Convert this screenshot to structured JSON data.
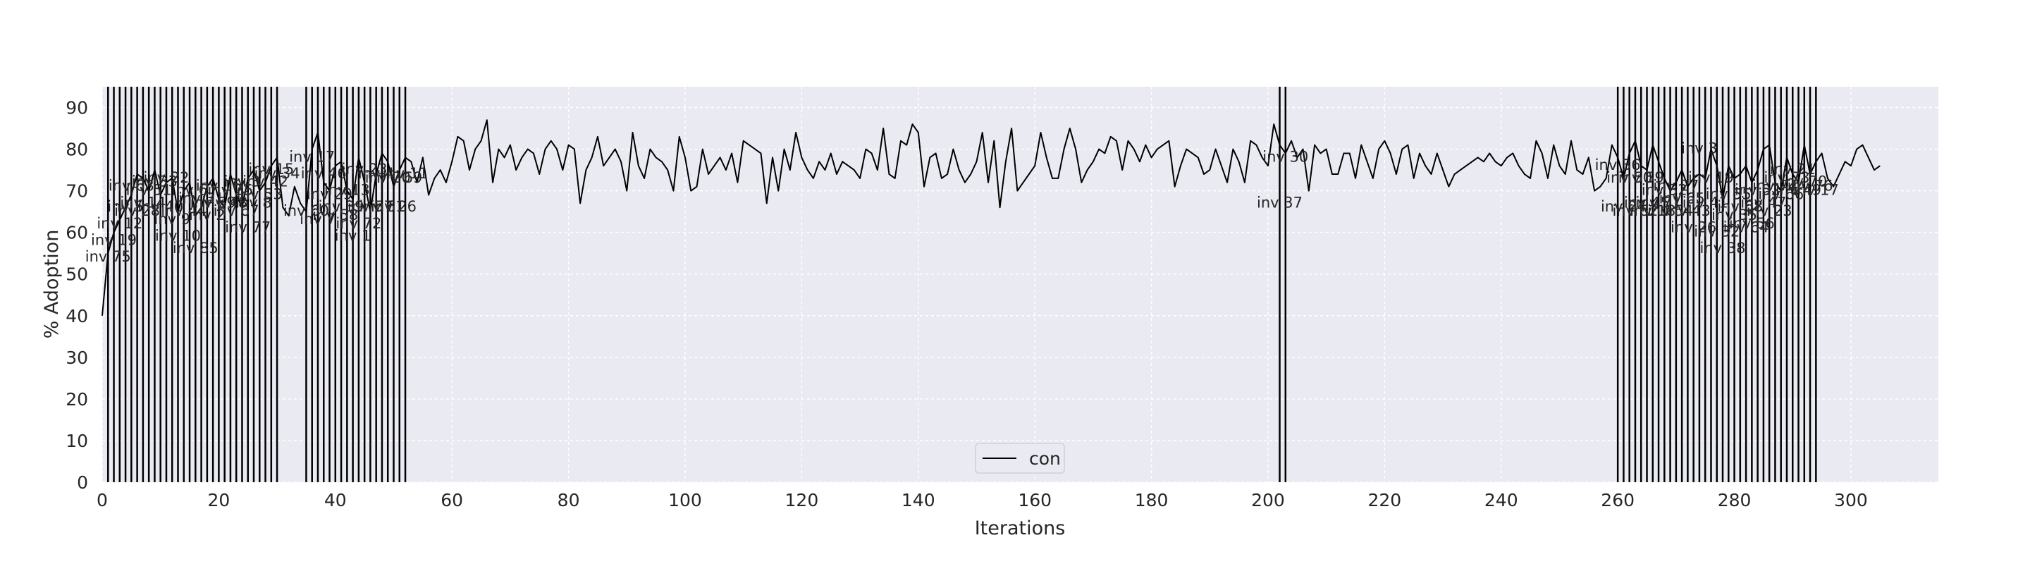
{
  "chart_data": {
    "type": "line",
    "title": "",
    "xlabel": "Iterations",
    "ylabel": "% Adoption",
    "xlim": [
      0,
      315
    ],
    "ylim": [
      0,
      95
    ],
    "xticks": [
      0,
      20,
      40,
      60,
      80,
      100,
      120,
      140,
      160,
      180,
      200,
      220,
      240,
      260,
      280,
      300
    ],
    "yticks": [
      0,
      10,
      20,
      30,
      40,
      50,
      60,
      70,
      80,
      90
    ],
    "grid": true,
    "legend_position": "bottom-center",
    "background_color": "#eaeaf2",
    "line_color": "#000000",
    "series": [
      {
        "name": "con",
        "x_start": 0,
        "x_step": 1,
        "values": [
          40,
          55,
          60,
          63,
          66,
          69,
          74,
          73,
          70,
          75,
          69,
          72,
          73,
          65,
          70,
          72,
          64,
          66,
          71,
          73,
          68,
          66,
          74,
          69,
          66,
          73,
          75,
          70,
          72,
          76,
          78,
          66,
          64,
          71,
          67,
          65,
          80,
          84,
          72,
          70,
          76,
          77,
          70,
          68,
          78,
          72,
          65,
          74,
          79,
          77,
          71,
          75,
          78,
          77,
          72,
          78,
          69,
          73,
          75,
          72,
          77,
          83,
          82,
          75,
          80,
          82,
          87,
          72,
          80,
          78,
          81,
          75,
          78,
          80,
          79,
          74,
          80,
          82,
          80,
          75,
          81,
          80,
          67,
          75,
          78,
          83,
          76,
          78,
          80,
          77,
          70,
          84,
          76,
          73,
          80,
          78,
          77,
          75,
          70,
          83,
          78,
          70,
          71,
          80,
          74,
          76,
          78,
          75,
          79,
          72,
          82,
          81,
          80,
          79,
          67,
          78,
          70,
          80,
          75,
          84,
          78,
          75,
          73,
          77,
          75,
          79,
          74,
          77,
          76,
          75,
          73,
          80,
          79,
          75,
          85,
          74,
          73,
          82,
          81,
          86,
          84,
          71,
          78,
          79,
          73,
          74,
          80,
          75,
          72,
          74,
          77,
          84,
          72,
          82,
          66,
          77,
          85,
          70,
          72,
          74,
          76,
          84,
          78,
          73,
          73,
          80,
          85,
          80,
          72,
          75,
          77,
          80,
          79,
          83,
          82,
          75,
          82,
          80,
          77,
          81,
          78,
          80,
          81,
          82,
          71,
          76,
          80,
          79,
          78,
          74,
          75,
          80,
          76,
          72,
          80,
          77,
          72,
          82,
          81,
          78,
          76,
          86,
          81,
          79,
          82,
          78,
          80,
          70,
          81,
          79,
          80,
          74,
          74,
          79,
          79,
          73,
          81,
          77,
          73,
          80,
          82,
          79,
          74,
          80,
          81,
          73,
          79,
          76,
          74,
          79,
          75,
          71,
          74,
          75,
          76,
          77,
          78,
          77,
          79,
          77,
          76,
          78,
          79,
          76,
          74,
          73,
          82,
          79,
          73,
          81,
          76,
          74,
          82,
          75,
          74,
          78,
          70,
          71,
          73,
          81,
          78,
          73,
          79,
          82,
          76,
          75,
          81,
          77,
          73,
          70,
          72,
          75,
          71,
          73,
          74,
          73,
          80,
          76,
          68,
          76,
          73,
          74,
          76,
          72,
          75,
          80,
          81,
          72,
          70,
          78,
          74,
          72,
          81,
          74,
          77,
          79,
          73,
          71,
          74,
          77,
          76,
          80,
          81,
          78,
          75,
          76
        ]
      }
    ],
    "interventions": [
      {
        "x": 1,
        "label": "inv 75",
        "y": 53
      },
      {
        "x": 2,
        "label": "inv 19",
        "y": 57
      },
      {
        "x": 3,
        "label": "inv 12",
        "y": 61
      },
      {
        "x": 4,
        "label": "inv 5",
        "y": 65
      },
      {
        "x": 5,
        "label": "inv 63",
        "y": 70
      },
      {
        "x": 6,
        "label": "inv 28",
        "y": 64
      },
      {
        "x": 7,
        "label": "inv 14",
        "y": 66
      },
      {
        "x": 8,
        "label": "inv 51",
        "y": 69
      },
      {
        "x": 9,
        "label": "inv 33",
        "y": 71
      },
      {
        "x": 10,
        "label": "inv 40",
        "y": 65
      },
      {
        "x": 11,
        "label": "inv 22",
        "y": 72
      },
      {
        "x": 12,
        "label": "inv 9",
        "y": 62
      },
      {
        "x": 13,
        "label": "inv 10",
        "y": 58
      },
      {
        "x": 14,
        "label": "inv 44",
        "y": 64
      },
      {
        "x": 15,
        "label": "inv 6",
        "y": 69
      },
      {
        "x": 16,
        "label": "inv 85",
        "y": 55
      },
      {
        "x": 17,
        "label": "inv 31",
        "y": 67
      },
      {
        "x": 18,
        "label": "inv 2",
        "y": 63
      },
      {
        "x": 19,
        "label": "inv 59",
        "y": 66
      },
      {
        "x": 20,
        "label": "inv 16",
        "y": 70
      },
      {
        "x": 21,
        "label": "inv 48",
        "y": 66
      },
      {
        "x": 22,
        "label": "inv 25",
        "y": 69
      },
      {
        "x": 23,
        "label": "inv 67",
        "y": 64
      },
      {
        "x": 24,
        "label": "inv 3",
        "y": 71
      },
      {
        "x": 25,
        "label": "inv 77",
        "y": 60
      },
      {
        "x": 26,
        "label": "inv 8",
        "y": 66
      },
      {
        "x": 27,
        "label": "inv 53",
        "y": 68
      },
      {
        "x": 28,
        "label": "inv 42",
        "y": 71
      },
      {
        "x": 29,
        "label": "inv 15",
        "y": 74
      },
      {
        "x": 30,
        "label": "inv 34",
        "y": 73
      },
      {
        "x": 35,
        "label": "inv 60",
        "y": 64
      },
      {
        "x": 36,
        "label": "inv 17",
        "y": 77
      },
      {
        "x": 37,
        "label": "inv 7",
        "y": 62
      },
      {
        "x": 38,
        "label": "inv 46",
        "y": 73
      },
      {
        "x": 39,
        "label": "inv 29",
        "y": 68
      },
      {
        "x": 40,
        "label": "inv 58",
        "y": 63
      },
      {
        "x": 41,
        "label": "inv 39",
        "y": 65
      },
      {
        "x": 42,
        "label": "inv 13",
        "y": 69
      },
      {
        "x": 43,
        "label": "inv 1",
        "y": 58
      },
      {
        "x": 44,
        "label": "inv 72",
        "y": 61
      },
      {
        "x": 45,
        "label": "inv 23",
        "y": 74
      },
      {
        "x": 46,
        "label": "inv 57",
        "y": 65
      },
      {
        "x": 47,
        "label": "inv 4",
        "y": 73
      },
      {
        "x": 48,
        "label": "inv 61",
        "y": 65
      },
      {
        "x": 49,
        "label": "inv 20",
        "y": 72
      },
      {
        "x": 50,
        "label": "inv 26",
        "y": 65
      },
      {
        "x": 51,
        "label": "inv 69",
        "y": 72
      },
      {
        "x": 52,
        "label": "inv 11",
        "y": 73
      },
      {
        "x": 202,
        "label": "inv 37",
        "y": 66
      },
      {
        "x": 203,
        "label": "inv 30",
        "y": 77
      },
      {
        "x": 260,
        "label": "inv 36",
        "y": 75
      },
      {
        "x": 261,
        "label": "inv 24",
        "y": 65
      },
      {
        "x": 262,
        "label": "inv 50",
        "y": 72
      },
      {
        "x": 263,
        "label": "inv 62",
        "y": 64
      },
      {
        "x": 264,
        "label": "inv 59",
        "y": 72
      },
      {
        "x": 265,
        "label": "inv 45",
        "y": 66
      },
      {
        "x": 266,
        "label": "inv 18",
        "y": 64
      },
      {
        "x": 267,
        "label": "inv 71",
        "y": 66
      },
      {
        "x": 268,
        "label": "inv 32",
        "y": 69
      },
      {
        "x": 269,
        "label": "inv 54",
        "y": 64
      },
      {
        "x": 270,
        "label": "inv 27",
        "y": 70
      },
      {
        "x": 271,
        "label": "inv 65",
        "y": 67
      },
      {
        "x": 272,
        "label": "inv 43",
        "y": 64
      },
      {
        "x": 273,
        "label": "inv 26",
        "y": 60
      },
      {
        "x": 274,
        "label": "inv 3",
        "y": 79
      },
      {
        "x": 275,
        "label": "inv 41",
        "y": 66
      },
      {
        "x": 276,
        "label": "inv 19",
        "y": 72
      },
      {
        "x": 277,
        "label": "inv 32",
        "y": 59
      },
      {
        "x": 278,
        "label": "inv 38",
        "y": 55
      },
      {
        "x": 279,
        "label": "inv 55",
        "y": 68
      },
      {
        "x": 280,
        "label": "inv 35",
        "y": 63
      },
      {
        "x": 281,
        "label": "inv 68",
        "y": 65
      },
      {
        "x": 282,
        "label": "inv 64",
        "y": 60
      },
      {
        "x": 283,
        "label": "inv 56",
        "y": 61
      },
      {
        "x": 284,
        "label": "inv 52",
        "y": 69
      },
      {
        "x": 285,
        "label": "inv 47",
        "y": 66
      },
      {
        "x": 286,
        "label": "inv 23",
        "y": 64
      },
      {
        "x": 287,
        "label": "inv 74",
        "y": 70
      },
      {
        "x": 288,
        "label": "inv 66",
        "y": 68
      },
      {
        "x": 289,
        "label": "inv 73",
        "y": 72
      },
      {
        "x": 290,
        "label": "inv 21",
        "y": 74
      },
      {
        "x": 291,
        "label": "inv 49",
        "y": 69
      },
      {
        "x": 292,
        "label": "inv 70",
        "y": 71
      },
      {
        "x": 293,
        "label": "inv 76",
        "y": 70
      },
      {
        "x": 294,
        "label": "inv 17",
        "y": 69
      }
    ]
  }
}
